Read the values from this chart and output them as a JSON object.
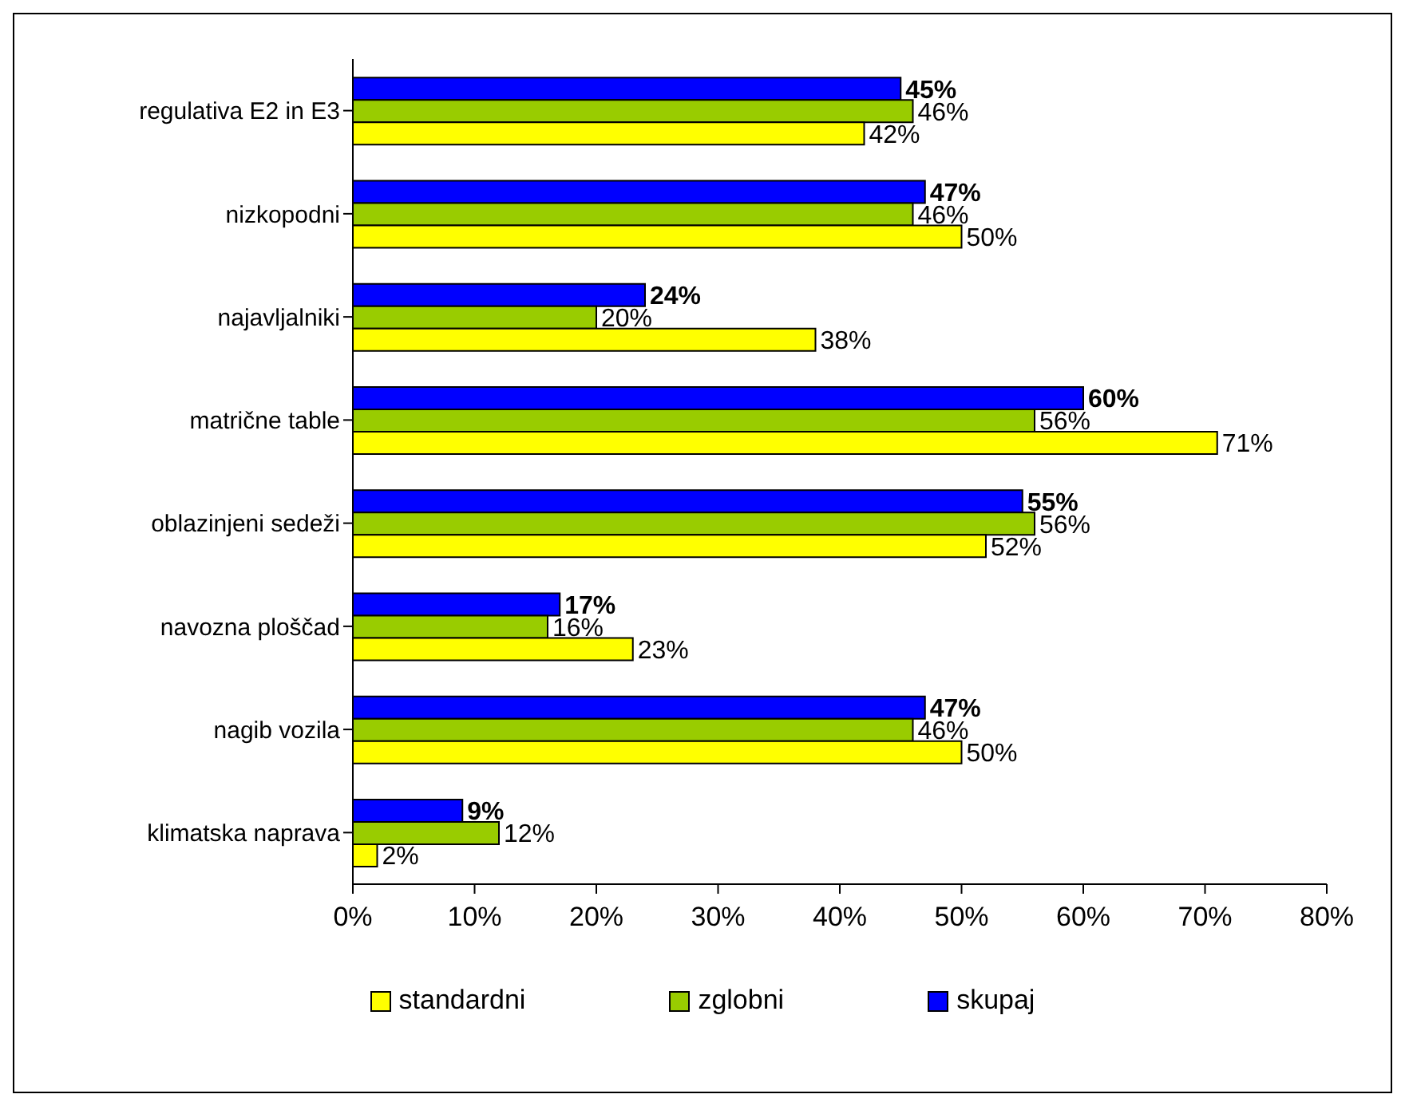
{
  "chart_data": {
    "type": "bar",
    "orientation": "horizontal",
    "categories": [
      "regulativa E2 in E3",
      "nizkopodni",
      "najavljalniki",
      "matrične table",
      "oblazinjeni sedeži",
      "navozna ploščad",
      "nagib vozila",
      "klimatska naprava"
    ],
    "series": [
      {
        "name": "standardni",
        "color": "#ffff00",
        "values": [
          42,
          50,
          38,
          71,
          52,
          23,
          50,
          2
        ],
        "value_labels": [
          "42%",
          "50%",
          "38%",
          "71%",
          "52%",
          "23%",
          "50%",
          "2%"
        ]
      },
      {
        "name": "zglobni",
        "color": "#99cc00",
        "values": [
          46,
          46,
          20,
          56,
          56,
          16,
          46,
          12
        ],
        "value_labels": [
          "46%",
          "46%",
          "20%",
          "56%",
          "56%",
          "16%",
          "46%",
          "12%"
        ]
      },
      {
        "name": "skupaj",
        "color": "#0000ff",
        "values": [
          45,
          47,
          24,
          60,
          55,
          17,
          47,
          9
        ],
        "value_labels": [
          "45%",
          "47%",
          "24%",
          "60%",
          "55%",
          "17%",
          "47%",
          "9%"
        ]
      }
    ],
    "xlim": [
      0,
      80
    ],
    "xticks": [
      {
        "value": 0,
        "label": "0%"
      },
      {
        "value": 10,
        "label": "10%"
      },
      {
        "value": 20,
        "label": "20%"
      },
      {
        "value": 30,
        "label": "30%"
      },
      {
        "value": 40,
        "label": "40%"
      },
      {
        "value": 50,
        "label": "50%"
      },
      {
        "value": 60,
        "label": "60%"
      },
      {
        "value": 70,
        "label": "70%"
      },
      {
        "value": 80,
        "label": "80%"
      }
    ],
    "grid": false,
    "legend": "bottom"
  }
}
